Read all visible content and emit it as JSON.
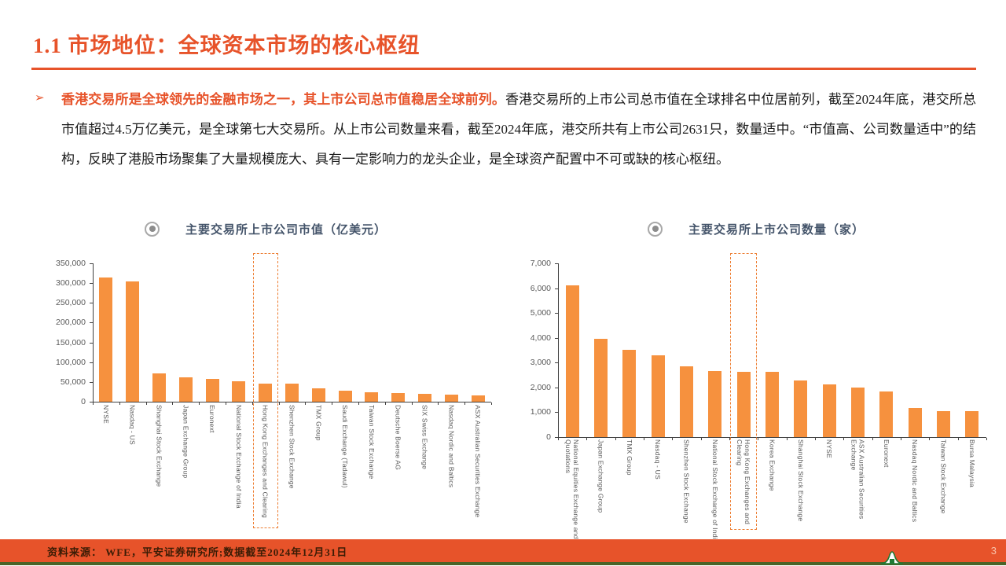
{
  "header": {
    "title": "1.1 市场地位：全球资本市场的核心枢纽"
  },
  "paragraph": {
    "bullet": "➢",
    "highlight": "香港交易所是全球领先的金融市场之一，其上市公司总市值稳居全球前列。",
    "body": "香港交易所的上市公司总市值在全球排名中位居前列，截至2024年底，港交所总市值超过4.5万亿美元，是全球第七大交易所。从上市公司数量来看，截至2024年底，港交所共有上市公司2631只，数量适中。“市值高、公司数量适中”的结构，反映了港股市场聚集了大量规模庞大、具有一定影响力的龙头企业，是全球资产配置中不可或缺的核心枢纽。"
  },
  "chart_data": [
    {
      "type": "bar",
      "title": "主要交易所上市公司市值（亿美元）",
      "categories": [
        "NYSE",
        "Nasdaq - US",
        "Shanghai Stock Exchange",
        "Japan Exchange Group",
        "Euronext",
        "National Stock Exchange of India",
        "Hong Kong Exchanges and Clearing",
        "Shenzhen Stock Exchange",
        "TMX Group",
        "Saudi Exchange (Tadawul)",
        "Taiwan Stock Exchange",
        "Deutsche Boerse AG",
        "SIX Swiss Exchange",
        "Nasdaq Nordic and Baltics",
        "ASX Australian Securities Exchange"
      ],
      "values": [
        315000,
        305000,
        71000,
        62000,
        57000,
        51000,
        45000,
        45000,
        34000,
        27000,
        24000,
        21000,
        20000,
        17000,
        16000
      ],
      "ylim": [
        0,
        350000
      ],
      "ytick_step": 50000,
      "highlight_index": 6,
      "legend": "none",
      "grid": false
    },
    {
      "type": "bar",
      "title": "主要交易所上市公司数量（家）",
      "categories": [
        "National Equities Exchange and Quotations",
        "Japan Exchange Group",
        "TMX Group",
        "Nasdaq - US",
        "Shenzhen Stock Exchange",
        "National Stock Exchange of India",
        "Hong Kong Exchanges and Clearing",
        "Korea Exchange",
        "Shanghai Stock Exchange",
        "NYSE",
        "ASX Australian Securities Exchange",
        "Euronext",
        "Nasdaq Nordic and Baltics",
        "Taiwan Stock Exchange",
        "Bursa Malaysia"
      ],
      "values": [
        6100,
        3970,
        3530,
        3280,
        2840,
        2660,
        2631,
        2620,
        2270,
        2110,
        1990,
        1830,
        1170,
        1040,
        1030
      ],
      "ylim": [
        0,
        7000
      ],
      "ytick_step": 1000,
      "highlight_index": 6,
      "legend": "none",
      "grid": false
    }
  ],
  "footer": {
    "source": "资料来源：  WFE，平安证券研究所;数据截至2024年12月31日",
    "page_number": "3"
  },
  "colors": {
    "accent": "#E7532A",
    "bar": "#F6913E",
    "highlight_box": "#ED7D31",
    "chart_title": "#44546A",
    "axis_text": "#595959",
    "footer_line": "#4A6328",
    "logo_green": "#1E7A34"
  },
  "icons": {
    "bullet": "arrow-bullet-icon",
    "chart_marker": "radio-bullet-icon",
    "logo": "mountain-logo-icon"
  }
}
